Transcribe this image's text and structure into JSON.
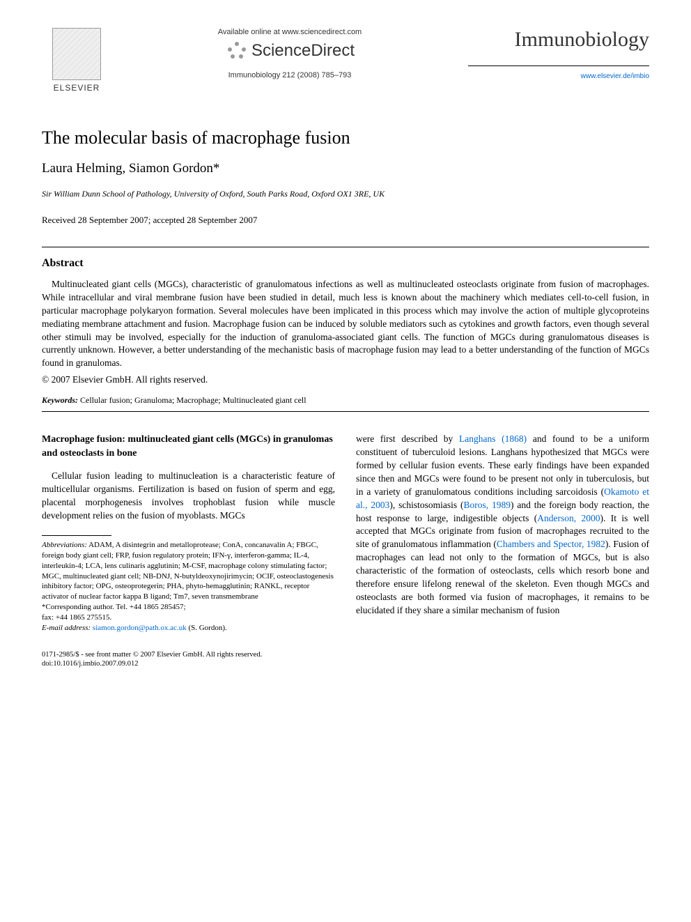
{
  "header": {
    "available_online": "Available online at www.sciencedirect.com",
    "sciencedirect": "ScienceDirect",
    "citation": "Immunobiology 212 (2008) 785–793",
    "elsevier": "ELSEVIER",
    "journal_name": "Immunobiology",
    "journal_link": "www.elsevier.de/imbio"
  },
  "title": "The molecular basis of macrophage fusion",
  "authors": "Laura Helming, Siamon Gordon*",
  "affiliation": "Sir William Dunn School of Pathology, University of Oxford, South Parks Road, Oxford OX1 3RE, UK",
  "received": "Received 28 September 2007; accepted 28 September 2007",
  "abstract": {
    "heading": "Abstract",
    "text": "Multinucleated giant cells (MGCs), characteristic of granulomatous infections as well as multinucleated osteoclasts originate from fusion of macrophages. While intracellular and viral membrane fusion have been studied in detail, much less is known about the machinery which mediates cell-to-cell fusion, in particular macrophage polykaryon formation. Several molecules have been implicated in this process which may involve the action of multiple glycoproteins mediating membrane attachment and fusion. Macrophage fusion can be induced by soluble mediators such as cytokines and growth factors, even though several other stimuli may be involved, especially for the induction of granuloma-associated giant cells. The function of MGCs during granulomatous diseases is currently unknown. However, a better understanding of the mechanistic basis of macrophage fusion may lead to a better understanding of the function of MGCs found in granulomas.",
    "copyright": "© 2007 Elsevier GmbH. All rights reserved."
  },
  "keywords": {
    "label": "Keywords:",
    "text": " Cellular fusion; Granuloma; Macrophage; Multinucleated giant cell"
  },
  "section": {
    "heading": "Macrophage fusion: multinucleated giant cells (MGCs) in granulomas and osteoclasts in bone",
    "col1_p1": "Cellular fusion leading to multinucleation is a characteristic feature of multicellular organisms. Fertilization is based on fusion of sperm and egg, placental morphogenesis involves trophoblast fusion while muscle development relies on the fusion of myoblasts. MGCs",
    "col2_p1a": "were first described by ",
    "col2_ref1": "Langhans (1868)",
    "col2_p1b": " and found to be a uniform constituent of tuberculoid lesions. Langhans hypothesized that MGCs were formed by cellular fusion events. These early findings have been expanded since then and MGCs were found to be present not only in tuberculosis, but in a variety of granulomatous conditions including sarcoidosis (",
    "col2_ref2": "Okamoto et al., 2003",
    "col2_p1c": "), schistosomiasis (",
    "col2_ref3": "Boros, 1989",
    "col2_p1d": ") and the foreign body reaction, the host response to large, indigestible objects (",
    "col2_ref4": "Anderson, 2000",
    "col2_p1e": "). It is well accepted that MGCs originate from fusion of macrophages recruited to the site of granulomatous inflammation (",
    "col2_ref5": "Chambers and Spector, 1982",
    "col2_p1f": "). Fusion of macrophages can lead not only to the formation of MGCs, but is also characteristic of the formation of osteoclasts, cells which resorb bone and therefore ensure lifelong renewal of the skeleton. Even though MGCs and osteoclasts are both formed via fusion of macrophages, it remains to be elucidated if they share a similar mechanism of fusion"
  },
  "footnotes": {
    "abbrev_label": "Abbreviations:",
    "abbrev_text": " ADAM, A disintegrin and metalloprotease; ConA, concanavalin A; FBGC, foreign body giant cell; FRP, fusion regulatory protein; IFN-γ, interferon-gamma; IL-4, interleukin-4; LCA, lens culinaris agglutinin; M-CSF, macrophage colony stimulating factor; MGC, multinucleated giant cell; NB-DNJ, N-butyldeoxynojirimycin; OCIF, osteoclastogenesis inhibitory factor; OPG, osteoprotegerin; PHA, phyto-hemagglutinin; RANKL, receptor activator of nuclear factor kappa B ligand; Tm7, seven transmembrane",
    "corr_label": "*Corresponding author. Tel. +44 1865 285457;",
    "fax": "fax: +44 1865 275515.",
    "email_label": "E-mail address:",
    "email": " siamon.gordon@path.ox.ac.uk",
    "email_suffix": " (S. Gordon)."
  },
  "bottom": {
    "line1": "0171-2985/$ - see front matter © 2007 Elsevier GmbH. All rights reserved.",
    "line2": "doi:10.1016/j.imbio.2007.09.012"
  },
  "colors": {
    "link": "#0066cc",
    "text": "#000000",
    "background": "#ffffff"
  }
}
